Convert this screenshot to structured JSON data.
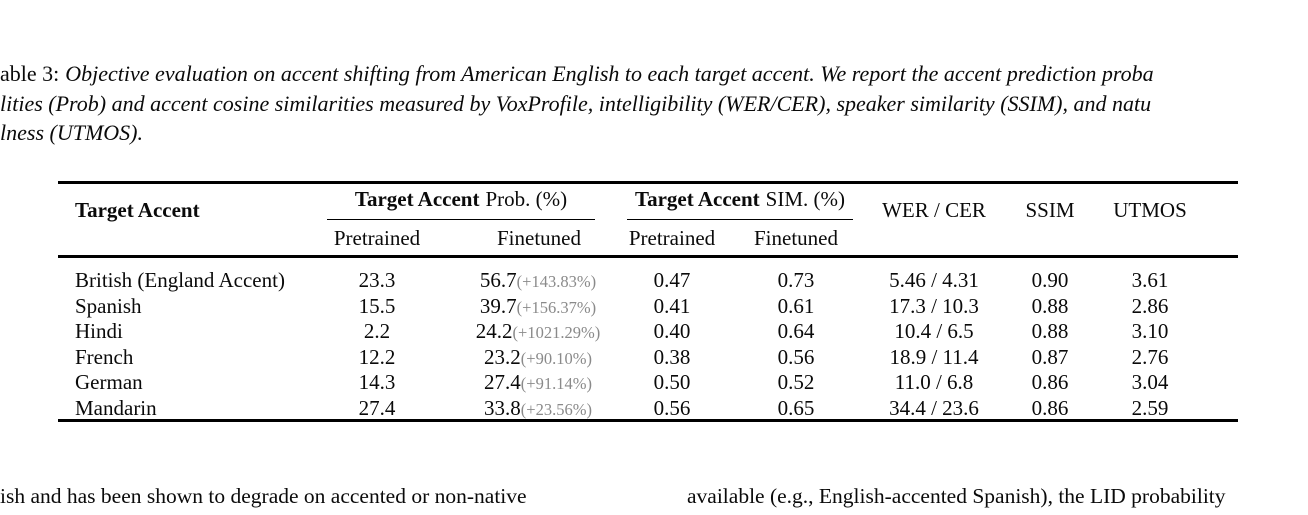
{
  "caption": {
    "line1_prefix": "able 3:",
    "line1_italic": "Objective evaluation on accent shifting from American English to each target accent. We report the accent prediction proba",
    "line2": "lities (Prob) and accent cosine similarities measured by VoxProfile, intelligibility (WER/CER), speaker similarity (SSIM), and natu",
    "line3": "lness (UTMOS)."
  },
  "table": {
    "col_accent": "Target Accent",
    "group_prob_bold": "Target Accent",
    "group_prob_rest": "Prob. (%)",
    "group_sim_bold": "Target Accent",
    "group_sim_rest": "SIM. (%)",
    "sub_pretrained_prob": "Pretrained",
    "sub_finetuned_prob": "Finetuned",
    "sub_pretrained_sim": "Pretrained",
    "sub_finetuned_sim": "Finetuned",
    "col_wer_cer": "WER / CER",
    "col_ssim": "SSIM",
    "col_utmos": "UTMOS",
    "rows": [
      {
        "accent": "British (England Accent)",
        "prob_pre": "23.3",
        "prob_fine": "56.7",
        "prob_delta": "(+143.83%)",
        "sim_pre": "0.47",
        "sim_fine": "0.73",
        "wer_cer": "5.46 / 4.31",
        "ssim": "0.90",
        "utmos": "3.61"
      },
      {
        "accent": "Spanish",
        "prob_pre": "15.5",
        "prob_fine": "39.7",
        "prob_delta": "(+156.37%)",
        "sim_pre": "0.41",
        "sim_fine": "0.61",
        "wer_cer": "17.3 / 10.3",
        "ssim": "0.88",
        "utmos": "2.86"
      },
      {
        "accent": "Hindi",
        "prob_pre": "2.2",
        "prob_fine": "24.2",
        "prob_delta": "(+1021.29%)",
        "sim_pre": "0.40",
        "sim_fine": "0.64",
        "wer_cer": "10.4 / 6.5",
        "ssim": "0.88",
        "utmos": "3.10"
      },
      {
        "accent": "French",
        "prob_pre": "12.2",
        "prob_fine": "23.2",
        "prob_delta": "(+90.10%)",
        "sim_pre": "0.38",
        "sim_fine": "0.56",
        "wer_cer": "18.9 / 11.4",
        "ssim": "0.87",
        "utmos": "2.76"
      },
      {
        "accent": "German",
        "prob_pre": "14.3",
        "prob_fine": "27.4",
        "prob_delta": "(+91.14%)",
        "sim_pre": "0.50",
        "sim_fine": "0.52",
        "wer_cer": "11.0 / 6.8",
        "ssim": "0.86",
        "utmos": "3.04"
      },
      {
        "accent": "Mandarin",
        "prob_pre": "27.4",
        "prob_fine": "33.8",
        "prob_delta": "(+23.56%)",
        "sim_pre": "0.56",
        "sim_fine": "0.65",
        "wer_cer": "34.4 / 23.6",
        "ssim": "0.86",
        "utmos": "2.59"
      }
    ]
  },
  "body_text": {
    "left_column": "ish and has been shown to degrade on accented or non-native",
    "right_column": "available (e.g., English-accented Spanish), the LID probability"
  },
  "colors": {
    "text": "#0a0a0a",
    "delta_gray": "#8a8a8a",
    "rule": "#000000"
  }
}
